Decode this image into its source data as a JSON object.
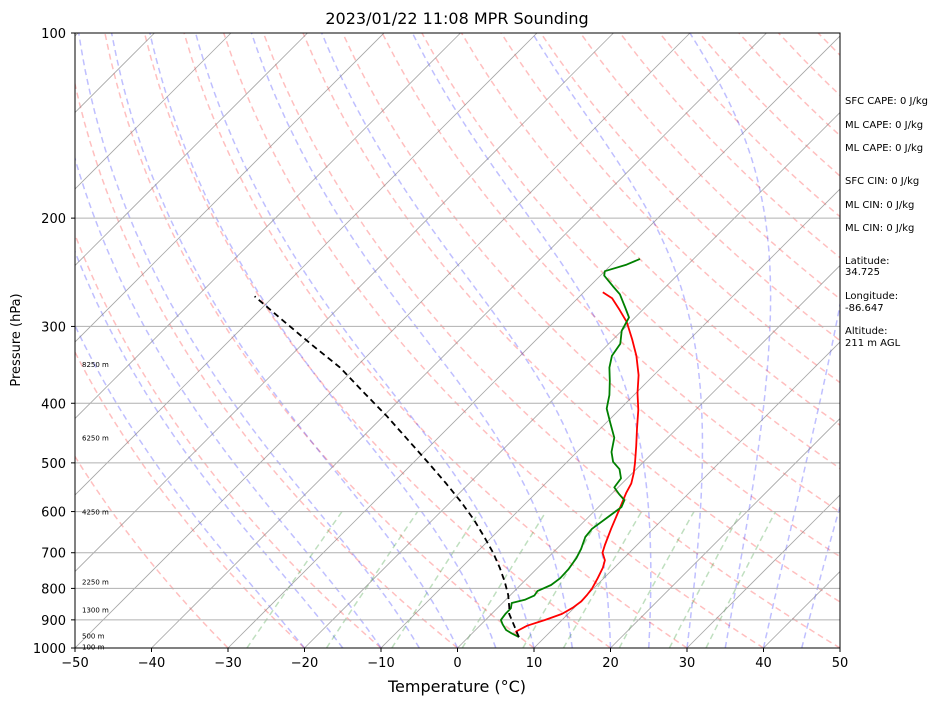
{
  "chart_data": {
    "type": "line",
    "title": "2023/01/22 11:08 MPR Sounding",
    "xlabel": "Temperature (°C)",
    "ylabel": "Pressure (hPa)",
    "xlim": [
      -50,
      50
    ],
    "ylim": [
      1000,
      100
    ],
    "y_scale": "log",
    "skew_t": true,
    "grid": true,
    "x_ticks": [
      "−50",
      "−40",
      "−30",
      "−20",
      "−10",
      "0",
      "10",
      "20",
      "30",
      "40",
      "50"
    ],
    "x_tick_values": [
      -50,
      -40,
      -30,
      -20,
      -10,
      0,
      10,
      20,
      30,
      40,
      50
    ],
    "y_ticks": [
      "100",
      "200",
      "300",
      "400",
      "500",
      "600",
      "700",
      "800",
      "900",
      "1000"
    ],
    "y_tick_values": [
      100,
      200,
      300,
      400,
      500,
      600,
      700,
      800,
      900,
      1000
    ],
    "altitude_labels": [
      "8250 m",
      "6250 m",
      "4250 m",
      "2250 m",
      "1300 m",
      "500 m",
      "100 m"
    ],
    "altitude_pressures": [
      345,
      455,
      600,
      780,
      865,
      955,
      995
    ],
    "series": [
      {
        "role": "temperature",
        "color": "#ff0000",
        "style": "solid",
        "points": [
          [
            6.6,
            960
          ],
          [
            5.5,
            940
          ],
          [
            6.2,
            920
          ],
          [
            7.8,
            900
          ],
          [
            9.2,
            880
          ],
          [
            9.8,
            860
          ],
          [
            10.1,
            840
          ],
          [
            10.0,
            820
          ],
          [
            9.8,
            800
          ],
          [
            9.2,
            770
          ],
          [
            8.5,
            740
          ],
          [
            7.8,
            720
          ],
          [
            6.5,
            700
          ],
          [
            5.8,
            680
          ],
          [
            4.5,
            640
          ],
          [
            3.2,
            600
          ],
          [
            1.8,
            560
          ],
          [
            1.2,
            540
          ],
          [
            0.2,
            520
          ],
          [
            -1.0,
            500
          ],
          [
            -3.0,
            470
          ],
          [
            -5.2,
            440
          ],
          [
            -7.5,
            410
          ],
          [
            -9.8,
            385
          ],
          [
            -12.0,
            360
          ],
          [
            -14.8,
            335
          ],
          [
            -17.5,
            315
          ],
          [
            -20.5,
            295
          ],
          [
            -23.0,
            282
          ],
          [
            -25.5,
            270
          ],
          [
            -27.5,
            264
          ]
        ]
      },
      {
        "role": "dewpoint",
        "color": "#008000",
        "style": "solid",
        "points": [
          [
            6.6,
            960
          ],
          [
            5.0,
            945
          ],
          [
            4.0,
            935
          ],
          [
            2.8,
            915
          ],
          [
            2.0,
            900
          ],
          [
            1.8,
            880
          ],
          [
            1.8,
            862
          ],
          [
            1.2,
            845
          ],
          [
            2.5,
            835
          ],
          [
            3.2,
            822
          ],
          [
            3.0,
            808
          ],
          [
            4.0,
            790
          ],
          [
            4.3,
            770
          ],
          [
            4.2,
            745
          ],
          [
            3.8,
            715
          ],
          [
            3.2,
            690
          ],
          [
            2.2,
            660
          ],
          [
            2.0,
            640
          ],
          [
            2.6,
            610
          ],
          [
            3.0,
            590
          ],
          [
            2.5,
            575
          ],
          [
            1.0,
            562
          ],
          [
            -0.5,
            548
          ],
          [
            -0.8,
            530
          ],
          [
            -2.2,
            512
          ],
          [
            -4.0,
            498
          ],
          [
            -5.5,
            480
          ],
          [
            -7.0,
            455
          ],
          [
            -9.5,
            430
          ],
          [
            -11.8,
            408
          ],
          [
            -13.2,
            388
          ],
          [
            -15.0,
            368
          ],
          [
            -16.8,
            350
          ],
          [
            -18.0,
            335
          ],
          [
            -18.5,
            320
          ],
          [
            -20.0,
            305
          ],
          [
            -20.8,
            290
          ],
          [
            -22.5,
            280
          ],
          [
            -25.0,
            266
          ],
          [
            -27.0,
            258
          ],
          [
            -29.5,
            248
          ],
          [
            -30.0,
            244
          ],
          [
            -28.0,
            238
          ],
          [
            -27.0,
            233
          ]
        ]
      },
      {
        "role": "parcel profile",
        "color": "#000000",
        "style": "dashed",
        "points": [
          [
            6.6,
            960
          ],
          [
            4.5,
            920
          ],
          [
            2.3,
            880
          ],
          [
            1.5,
            860
          ],
          [
            -0.3,
            820
          ],
          [
            -2.5,
            780
          ],
          [
            -5.0,
            740
          ],
          [
            -7.8,
            700
          ],
          [
            -11.0,
            660
          ],
          [
            -14.5,
            620
          ],
          [
            -18.5,
            580
          ],
          [
            -23.0,
            540
          ],
          [
            -28.0,
            500
          ],
          [
            -33.5,
            460
          ],
          [
            -39.5,
            420
          ],
          [
            -45.5,
            385
          ],
          [
            -52.0,
            350
          ],
          [
            -59.0,
            320
          ],
          [
            -66.0,
            292
          ],
          [
            -72.5,
            268
          ]
        ]
      }
    ],
    "reference_lines": [
      {
        "kind": "isotherm",
        "color": "#808080",
        "style": "solid"
      },
      {
        "kind": "dry adiabat",
        "color": "#ff0000",
        "style": "dashed"
      },
      {
        "kind": "moist adiabat",
        "color": "#0000ff",
        "style": "dashed"
      },
      {
        "kind": "mixing ratio",
        "color": "#008000",
        "style": "dashed"
      }
    ],
    "info_lines": [
      "SFC CAPE: 0 J/kg",
      "ML CAPE: 0 J/kg",
      "ML CAPE: 0 J/kg",
      "SFC CIN: 0 J/kg",
      "ML CIN: 0 J/kg",
      "ML CIN: 0 J/kg",
      "Latitude:",
      "34.725",
      "Longitude:",
      "-86.647",
      "Altitude:",
      "211 m AGL"
    ]
  }
}
